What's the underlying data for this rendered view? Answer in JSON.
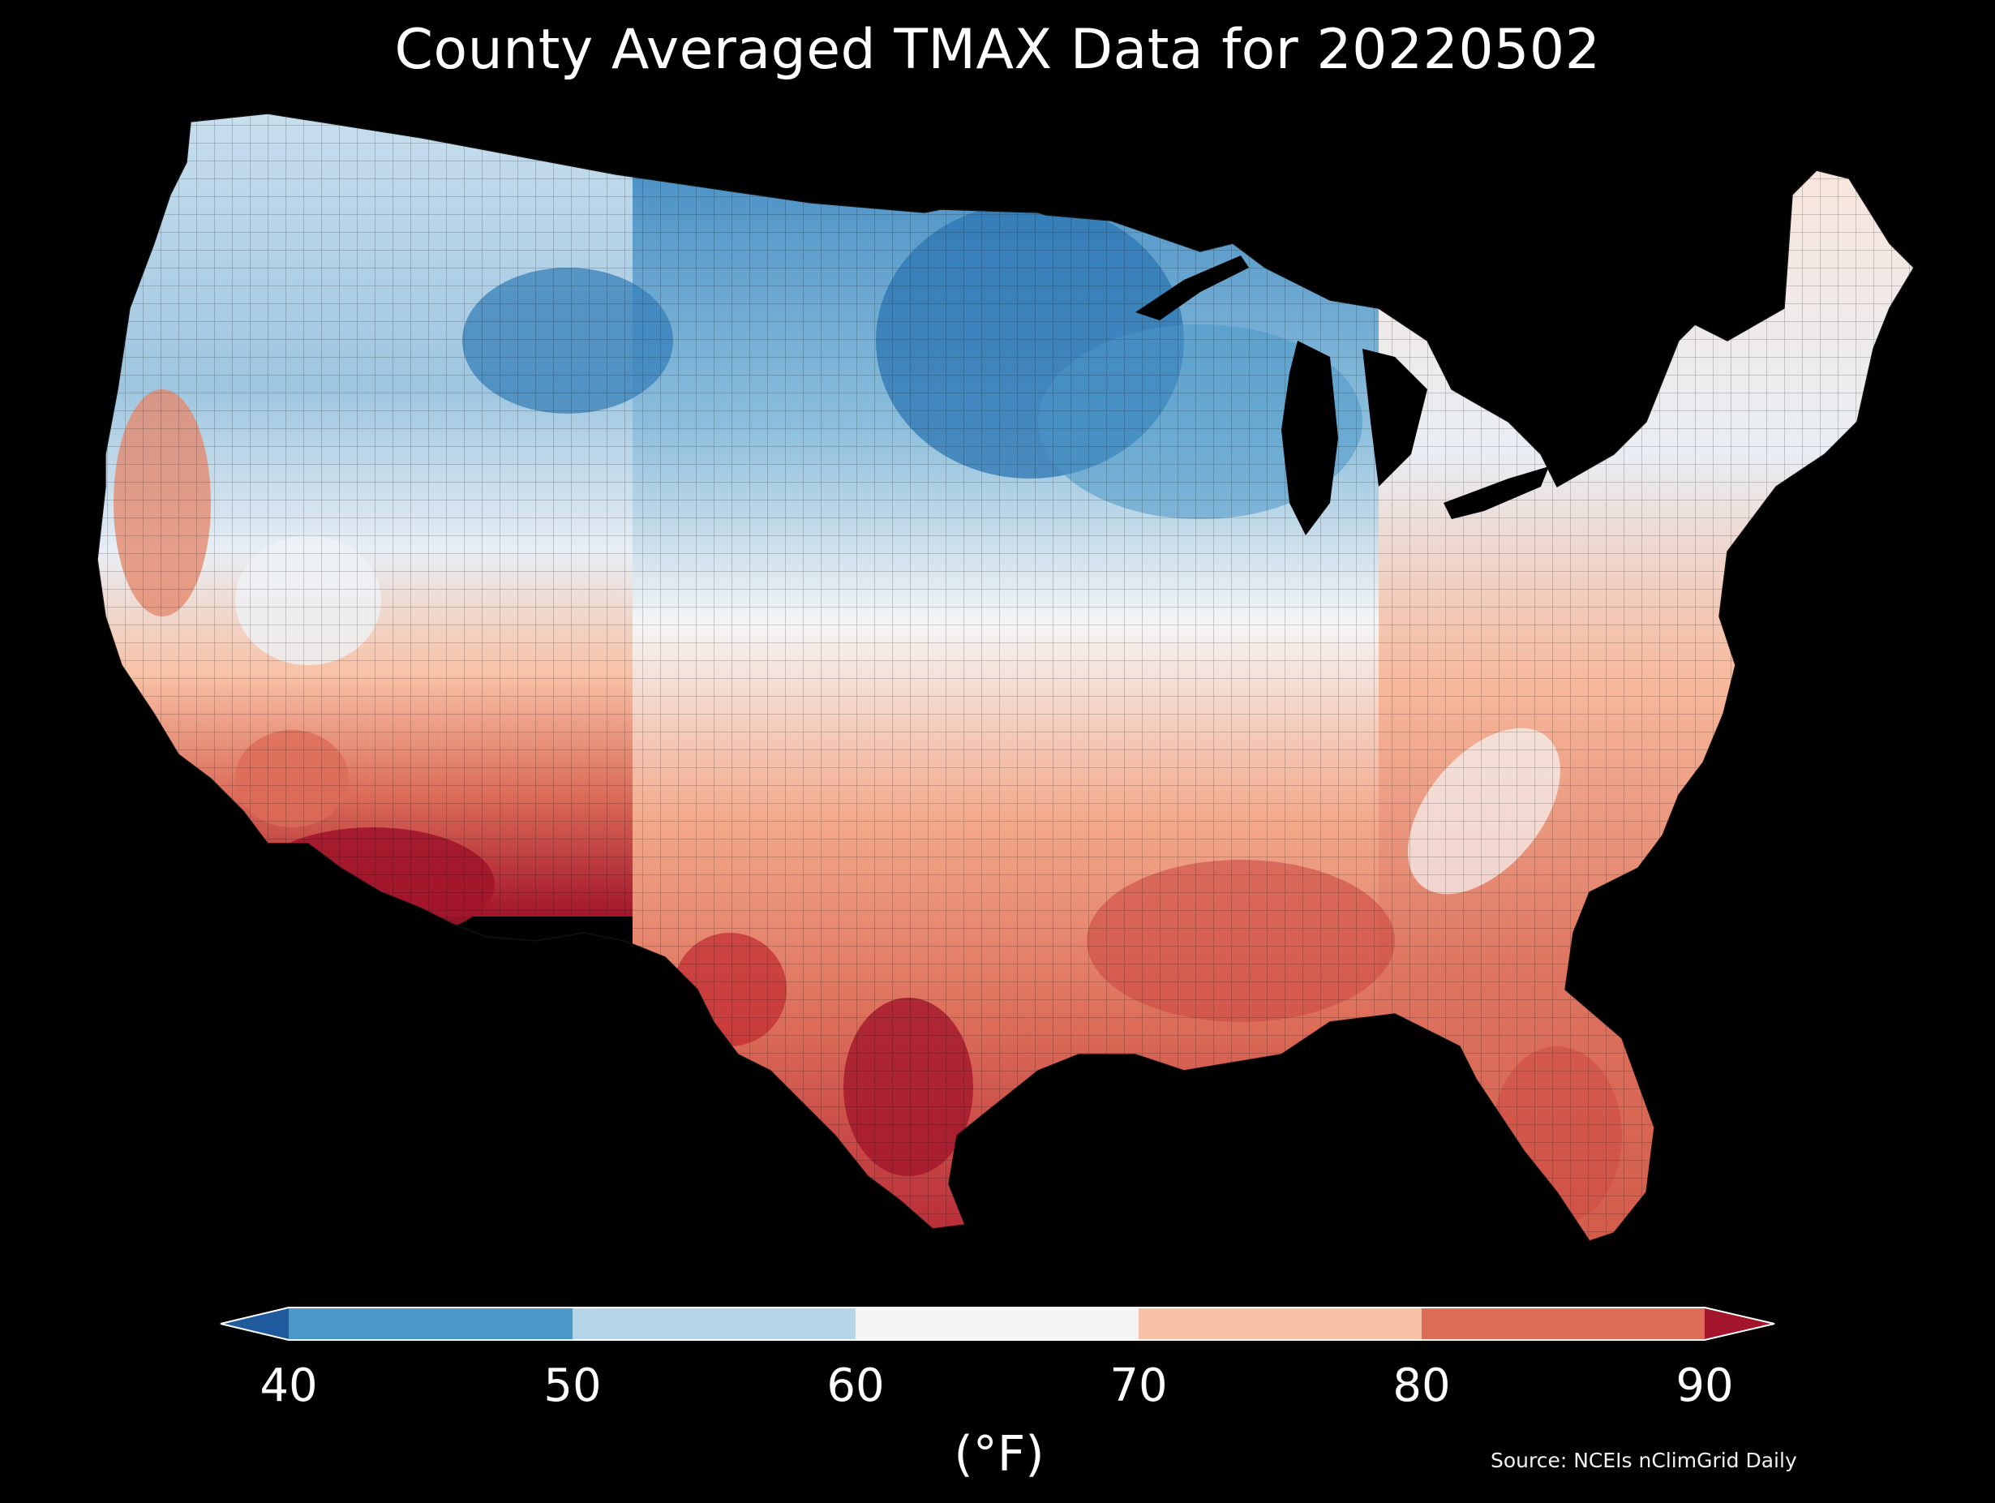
{
  "title": "County Averaged TMAX Data for 20220502",
  "colorbar": {
    "ticks": [
      "40",
      "50",
      "60",
      "70",
      "80",
      "90"
    ],
    "unit": "(°F)",
    "colors": {
      "under": "#1f5a9c",
      "b40_50": "#4b97c8",
      "b50_60": "#b5d6e9",
      "b60_70": "#f5f5f5",
      "b70_80": "#f8c2a6",
      "b80_90": "#dc6c58",
      "over": "#a2152a"
    },
    "extend": "both"
  },
  "source": "Source: NCEIs nClimGrid Daily",
  "background": "#000000"
}
